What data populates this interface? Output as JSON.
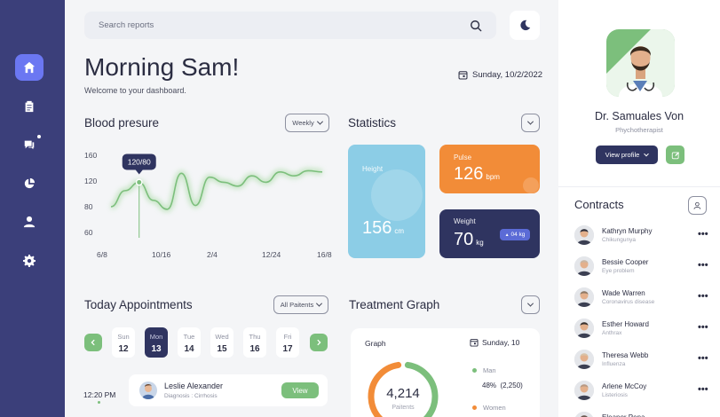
{
  "search": {
    "placeholder": "Search reports"
  },
  "header": {
    "greeting": "Morning Sam!",
    "welcome": "Welcome to your dashboard.",
    "date": "Sunday, 10/2/2022"
  },
  "blood_pressure": {
    "title": "Blood presure",
    "filter": "Weekly",
    "tooltip": "120/80",
    "chart_data": {
      "type": "line",
      "title": "Blood presure",
      "x_labels": [
        "6/8",
        "10/16",
        "2/4",
        "12/24",
        "16/8"
      ],
      "y_ticks": [
        "160",
        "120",
        "80",
        "60"
      ],
      "ylim": [
        60,
        160
      ],
      "series": [
        {
          "name": "Blood pressure",
          "values": [
            80,
            105,
            118,
            90,
            78,
            132,
            82,
            126,
            118,
            112,
            128,
            118,
            134,
            128,
            136,
            134
          ]
        }
      ],
      "highlight": {
        "label": "120/80",
        "value": 118
      }
    }
  },
  "statistics": {
    "title": "Statistics",
    "height": {
      "label": "Height",
      "value": "156",
      "unit": "cm"
    },
    "pulse": {
      "label": "Pulse",
      "value": "126",
      "unit": "bpm"
    },
    "weight": {
      "label": "Weight",
      "value": "70",
      "unit": "kg",
      "badge": "04 kg"
    }
  },
  "appointments": {
    "title": "Today Appointments",
    "filter": "All Paitents",
    "days": [
      {
        "name": "Sun",
        "num": "12"
      },
      {
        "name": "Mon",
        "num": "13"
      },
      {
        "name": "Tue",
        "num": "14"
      },
      {
        "name": "Wed",
        "num": "15"
      },
      {
        "name": "Thu",
        "num": "16"
      },
      {
        "name": "Fri",
        "num": "17"
      }
    ],
    "selected_day": "Mon",
    "time": "12:20 PM",
    "item": {
      "name": "Leslie Alexander",
      "diagnosis": "Diagnosis : Cirrhosis",
      "action": "View"
    }
  },
  "treatment": {
    "title": "Treatment Graph",
    "graph_label": "Graph",
    "date": "Sunday, 10",
    "total": "4,214",
    "total_label": "Paitents",
    "men": {
      "label": "Man",
      "value": "48%",
      "count": "(2,250)"
    },
    "women": {
      "label": "Women"
    },
    "colors": {
      "men": "#7cbf7c",
      "women": "#f28c38"
    },
    "chart_data": {
      "type": "pie",
      "title": "Treatment Graph",
      "total": 4214,
      "slices": [
        {
          "label": "Man",
          "value": 48,
          "count": 2250
        },
        {
          "label": "Women",
          "value": 52
        }
      ]
    }
  },
  "profile": {
    "name": "Dr. Samuales Von",
    "role": "Phychotherapist",
    "view_profile": "View profile"
  },
  "contracts": {
    "title": "Contracts",
    "items": [
      {
        "name": "Kathryn Murphy",
        "sub": "Chikungunya"
      },
      {
        "name": "Bessie Cooper",
        "sub": "Eye problem"
      },
      {
        "name": "Wade Warren",
        "sub": "Coronavirus disease"
      },
      {
        "name": "Esther Howard",
        "sub": "Anthrax"
      },
      {
        "name": "Theresa Webb",
        "sub": "Influenza"
      },
      {
        "name": "Arlene McCoy",
        "sub": "Listeriosis"
      },
      {
        "name": "Eleanor Pena",
        "sub": ""
      }
    ]
  },
  "theme": {
    "accent": "#6b77f2",
    "sidebar": "#3b3f7a",
    "green": "#7cbf7c",
    "orange": "#f28c38",
    "navy": "#2f3460",
    "sky": "#8ccde6"
  }
}
